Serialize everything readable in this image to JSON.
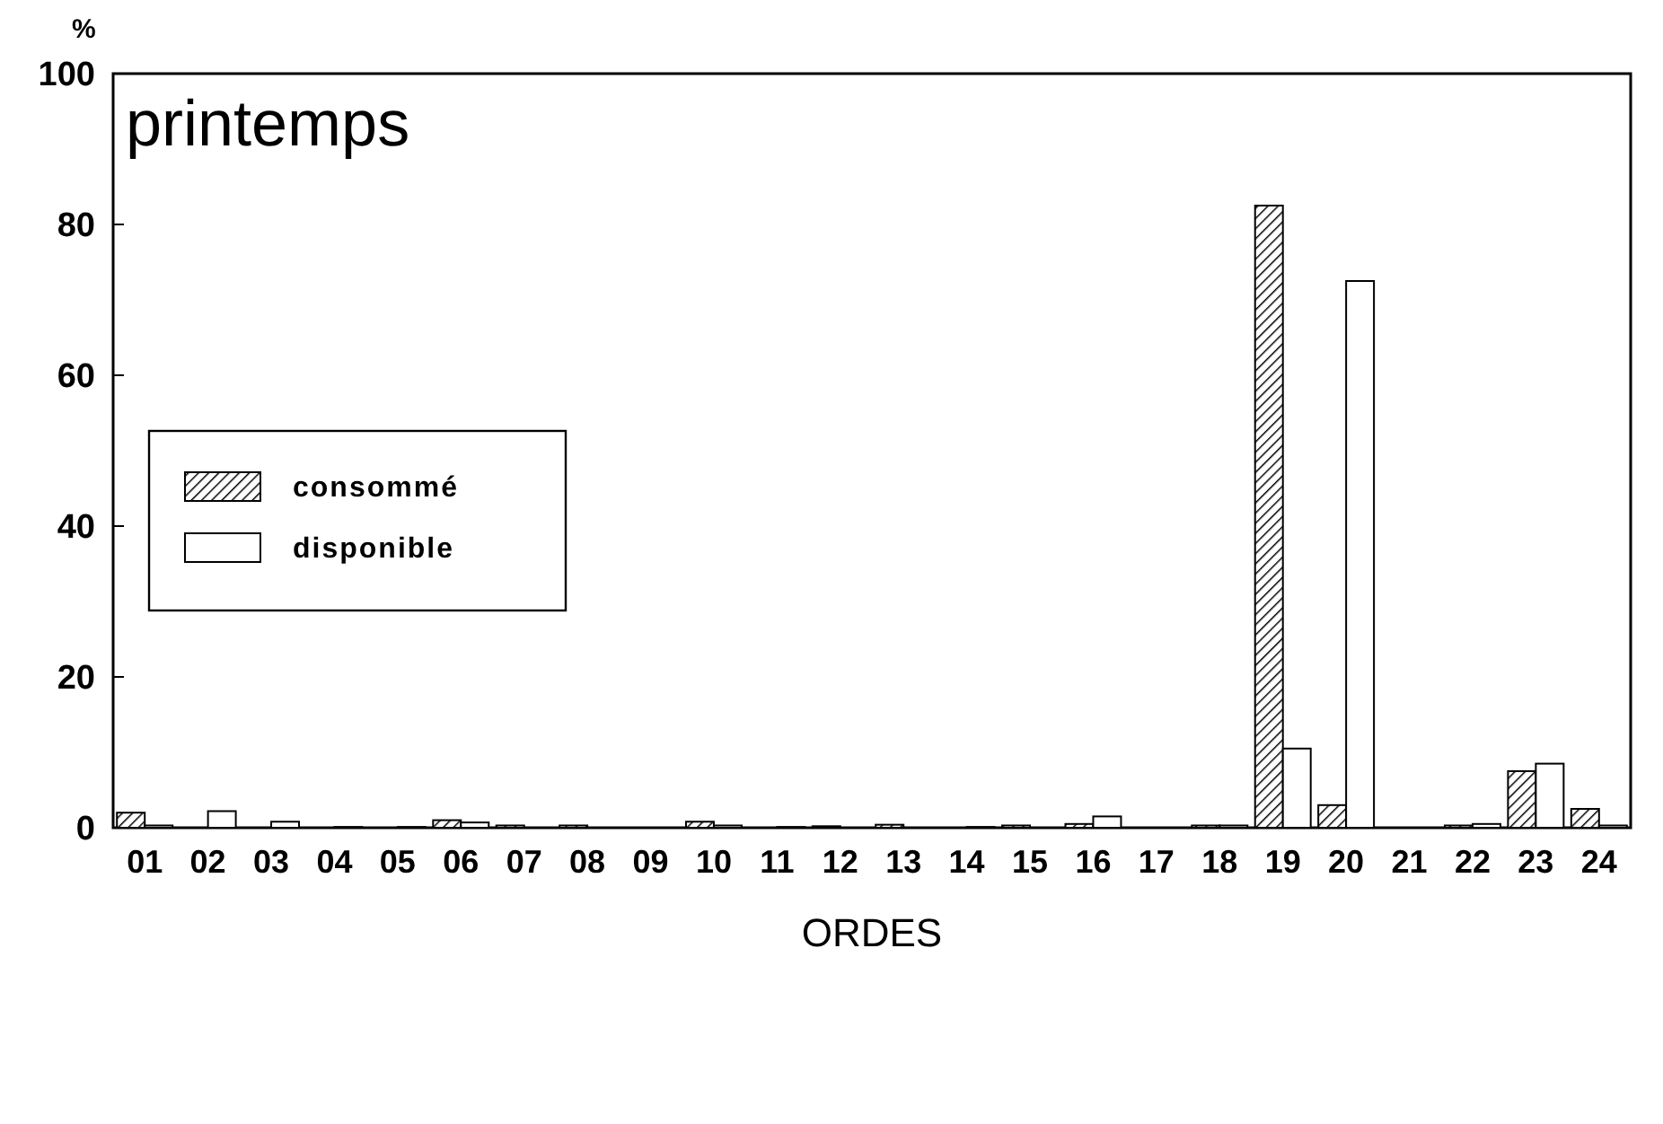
{
  "chart_data": {
    "type": "bar",
    "title": "printemps",
    "xlabel": "ORDES",
    "ylabel": "%",
    "categories": [
      "01",
      "02",
      "03",
      "04",
      "05",
      "06",
      "07",
      "08",
      "09",
      "10",
      "11",
      "12",
      "13",
      "14",
      "15",
      "16",
      "17",
      "18",
      "19",
      "20",
      "21",
      "22",
      "23",
      "24"
    ],
    "series": [
      {
        "name": "consommé",
        "color": "#000000",
        "values": [
          2,
          0,
          0,
          0,
          0,
          1,
          0.3,
          0.3,
          0,
          0.8,
          0,
          0.2,
          0.4,
          0,
          0.3,
          0.5,
          0,
          0.3,
          82.5,
          3,
          0,
          0.3,
          7.5,
          2.5
        ]
      },
      {
        "name": "disponible",
        "color": "#ffffff",
        "values": [
          0.3,
          2.2,
          0.8,
          0.1,
          0.1,
          0.7,
          null,
          0,
          0,
          0.3,
          0.1,
          null,
          null,
          0.1,
          null,
          1.5,
          0,
          0.3,
          10.5,
          72.5,
          0,
          0.5,
          8.5,
          0.3
        ]
      }
    ],
    "ylim": [
      0,
      100
    ],
    "yticks": [
      0,
      20,
      40,
      60,
      80,
      100
    ],
    "grid": false,
    "legend": "left"
  }
}
